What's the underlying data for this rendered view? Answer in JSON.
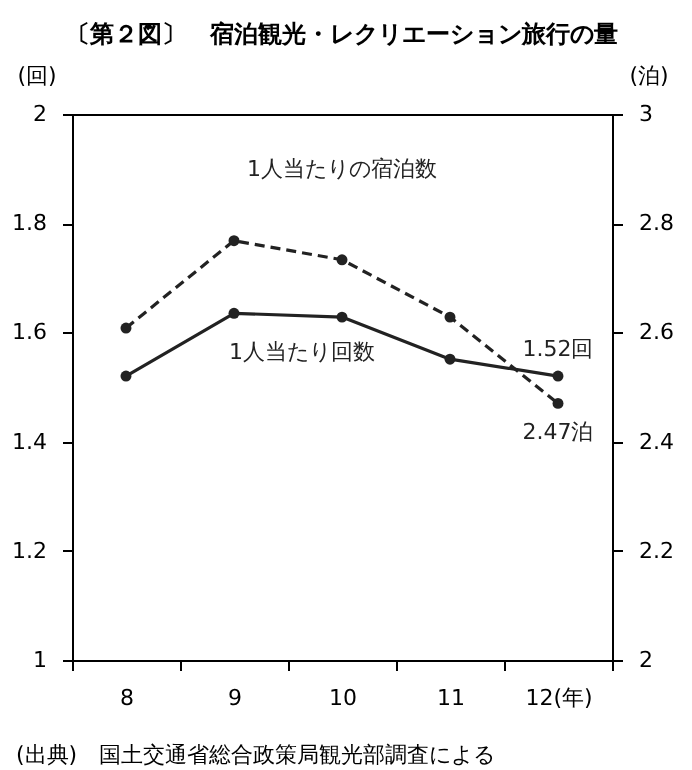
{
  "chart_data": {
    "type": "line",
    "title": "〔第２図〕　宿泊観光・レクリエーション旅行の量",
    "categories": [
      "8",
      "9",
      "10",
      "11",
      "12(年)"
    ],
    "ylabel": "(回)",
    "y2label": "(泊)",
    "ylim": [
      1,
      2
    ],
    "yticks": [
      1,
      1.2,
      1.4,
      1.6,
      1.8,
      2
    ],
    "y2lim": [
      2,
      3
    ],
    "y2ticks": [
      2,
      2.2,
      2.4,
      2.6,
      2.8,
      3
    ],
    "marker": "circle",
    "grid": false,
    "series": [
      {
        "name": "1人当たり回数",
        "color": "#222222",
        "line_style": "solid",
        "values": [
          1.52,
          1.635,
          1.628,
          1.551,
          1.52
        ],
        "value_labels": [
          null,
          null,
          null,
          null,
          "1.52回"
        ]
      },
      {
        "name": "1人当たりの宿泊数",
        "color": "#222222",
        "line_style": "dashed",
        "axis": "y2",
        "values": [
          2.608,
          2.768,
          2.733,
          2.628,
          2.47
        ],
        "value_labels": [
          null,
          null,
          null,
          null,
          "2.47泊"
        ]
      }
    ],
    "annotations": [
      "(出典)　国土交通省総合政策局観光部調査による"
    ]
  }
}
